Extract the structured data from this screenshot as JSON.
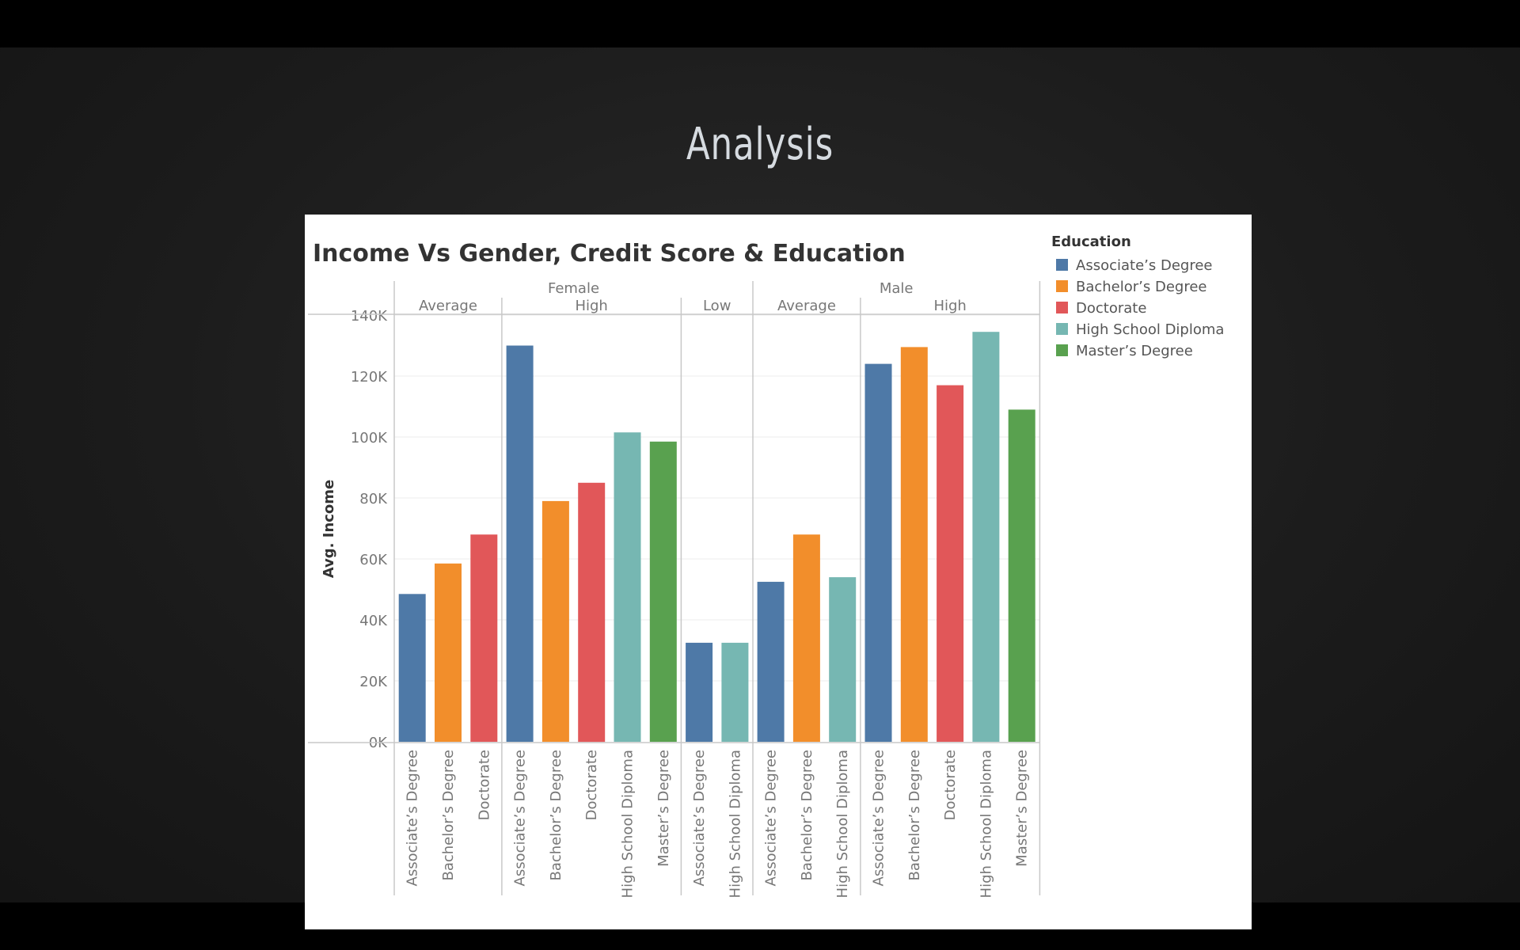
{
  "slide": {
    "title": "Analysis"
  },
  "chart_data": {
    "type": "bar",
    "title": "Income Vs Gender, Credit Score & Education",
    "ylabel": "Avg. Income",
    "ylim": [
      0,
      140000
    ],
    "yticks": [
      0,
      20000,
      40000,
      60000,
      80000,
      100000,
      120000,
      140000
    ],
    "ytick_labels": [
      "0K",
      "20K",
      "40K",
      "60K",
      "80K",
      "100K",
      "120K",
      "140K"
    ],
    "legend": {
      "title": "Education",
      "position": "right",
      "items": [
        {
          "label": "Associate’s Degree",
          "color": "#4e79a7"
        },
        {
          "label": "Bachelor’s Degree",
          "color": "#f28e2b"
        },
        {
          "label": "Doctorate",
          "color": "#e15759"
        },
        {
          "label": "High School Diploma",
          "color": "#76b7b2"
        },
        {
          "label": "Master’s Degree",
          "color": "#59a14f"
        }
      ]
    },
    "genders": [
      {
        "name": "Female",
        "groups": [
          {
            "name": "Average",
            "bars": [
              {
                "category": "Associate’s Degree",
                "value": 48500
              },
              {
                "category": "Bachelor’s Degree",
                "value": 58500
              },
              {
                "category": "Doctorate",
                "value": 68000
              }
            ]
          },
          {
            "name": "High",
            "bars": [
              {
                "category": "Associate’s Degree",
                "value": 130000
              },
              {
                "category": "Bachelor’s Degree",
                "value": 79000
              },
              {
                "category": "Doctorate",
                "value": 85000
              },
              {
                "category": "High School Diploma",
                "value": 101500
              },
              {
                "category": "Master’s Degree",
                "value": 98500
              }
            ]
          },
          {
            "name": "Low",
            "bars": [
              {
                "category": "Associate’s Degree",
                "value": 32500
              },
              {
                "category": "High School Diploma",
                "value": 32500
              }
            ]
          }
        ]
      },
      {
        "name": "Male",
        "groups": [
          {
            "name": "Average",
            "bars": [
              {
                "category": "Associate’s Degree",
                "value": 52500
              },
              {
                "category": "Bachelor’s Degree",
                "value": 68000
              },
              {
                "category": "High School Diploma",
                "value": 54000
              }
            ]
          },
          {
            "name": "High",
            "bars": [
              {
                "category": "Associate’s Degree",
                "value": 124000
              },
              {
                "category": "Bachelor’s Degree",
                "value": 129500
              },
              {
                "category": "Doctorate",
                "value": 117000
              },
              {
                "category": "High School Diploma",
                "value": 134500
              },
              {
                "category": "Master’s Degree",
                "value": 109000
              }
            ]
          }
        ]
      }
    ],
    "grid": true
  }
}
